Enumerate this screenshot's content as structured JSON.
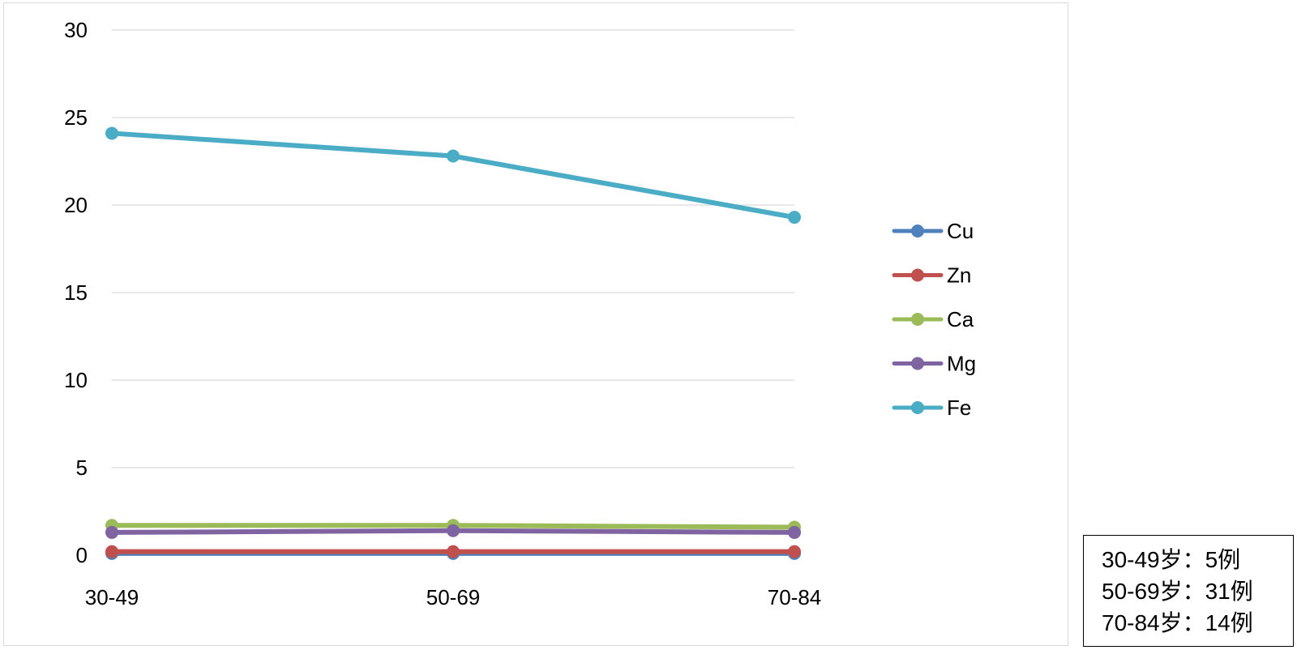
{
  "chart_data": {
    "type": "line",
    "categories": [
      "30-49",
      "50-69",
      "70-84"
    ],
    "series": [
      {
        "name": "Cu",
        "color": "#4f81bd",
        "values": [
          0.1,
          0.1,
          0.1
        ]
      },
      {
        "name": "Zn",
        "color": "#c0504d",
        "values": [
          0.2,
          0.2,
          0.2
        ]
      },
      {
        "name": "Ca",
        "color": "#9bbb59",
        "values": [
          1.7,
          1.7,
          1.6
        ]
      },
      {
        "name": "Mg",
        "color": "#8064a2",
        "values": [
          1.3,
          1.4,
          1.3
        ]
      },
      {
        "name": "Fe",
        "color": "#4bacc6",
        "values": [
          24.1,
          22.8,
          19.3
        ]
      }
    ],
    "yticks": [
      0,
      5,
      10,
      15,
      20,
      25,
      30
    ],
    "ylim": [
      0,
      30
    ],
    "grid": true,
    "legend_position": "right"
  },
  "note": {
    "lines": [
      "30-49岁：5例",
      "50-69岁：31例",
      "70-84岁：14例"
    ]
  }
}
